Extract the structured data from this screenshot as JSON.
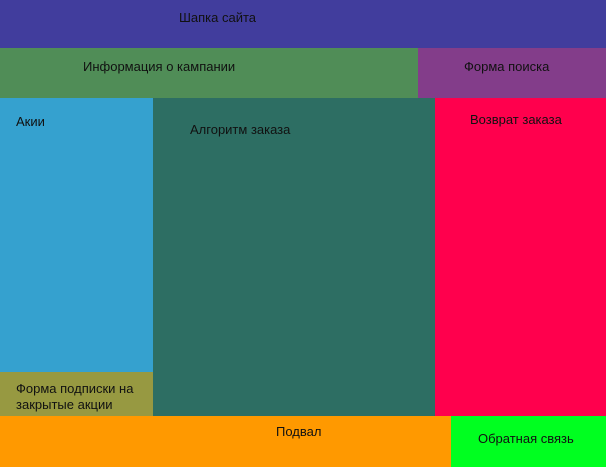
{
  "header": {
    "label": "Шапка сайта",
    "color": "#413D9D"
  },
  "company_info": {
    "label": "Информация о кампании",
    "color": "#508D57"
  },
  "search_form": {
    "label": "Форма поиска",
    "color": "#833D8A"
  },
  "promotions": {
    "label": "Акии",
    "color": "#35A1CF"
  },
  "subscribe_form": {
    "label": "Форма подписки на закрытые акции",
    "color": "#979941"
  },
  "order_algorithm": {
    "label": "Алгоритм заказа",
    "color": "#2D6E63"
  },
  "order_return": {
    "label": "Возврат заказа",
    "color": "#FF004D"
  },
  "footer": {
    "label": "Подвал",
    "color": "#FF9900"
  },
  "feedback": {
    "label": "Обратная связь",
    "color": "#00FF20"
  }
}
